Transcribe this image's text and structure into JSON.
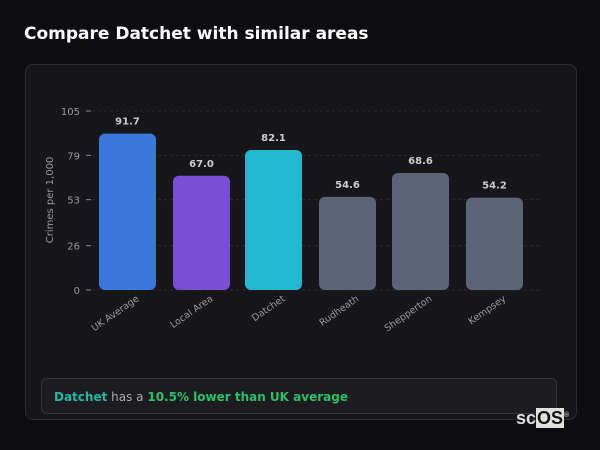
{
  "title": "Compare Datchet with similar areas",
  "chart_data": {
    "type": "bar",
    "title": "",
    "xlabel": "",
    "ylabel": "Crimes per 1,000",
    "ylim": [
      0,
      105
    ],
    "yticks": [
      0,
      26,
      53,
      79,
      105
    ],
    "grid": true,
    "categories": [
      "UK Average",
      "Local Area",
      "Datchet",
      "Rudheath",
      "Shepperton",
      "Kempsey"
    ],
    "values": [
      91.7,
      67.0,
      82.1,
      54.6,
      68.6,
      54.2
    ],
    "data_labels": [
      "91.7",
      "67.0",
      "82.1",
      "54.6",
      "68.6",
      "54.2"
    ],
    "colors": [
      "#3a78dc",
      "#7b4fd4",
      "#22b8cf",
      "#5c6577",
      "#5c6577",
      "#5c6577"
    ]
  },
  "insight": {
    "area": "Datchet",
    "middle": " has a ",
    "comparison": "10.5% lower than UK average"
  },
  "logo": {
    "text_sc": "sc",
    "text_os": "OS",
    "mark": "®"
  }
}
